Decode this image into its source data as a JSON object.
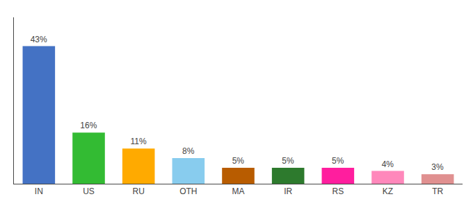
{
  "chart_data": {
    "type": "bar",
    "categories": [
      "IN",
      "US",
      "RU",
      "OTH",
      "MA",
      "IR",
      "RS",
      "KZ",
      "TR"
    ],
    "values": [
      43,
      16,
      11,
      8,
      5,
      5,
      5,
      4,
      3
    ],
    "value_labels": [
      "43%",
      "16%",
      "11%",
      "8%",
      "5%",
      "5%",
      "5%",
      "4%",
      "3%"
    ],
    "colors": [
      "#4472c4",
      "#33bb33",
      "#ffaa00",
      "#88ccee",
      "#b85c00",
      "#2d7a2d",
      "#ff1e9e",
      "#ff88bb",
      "#e09090"
    ],
    "ylim": [
      0,
      52
    ],
    "grid": false,
    "data_labels": true,
    "tick_labels": "x"
  }
}
